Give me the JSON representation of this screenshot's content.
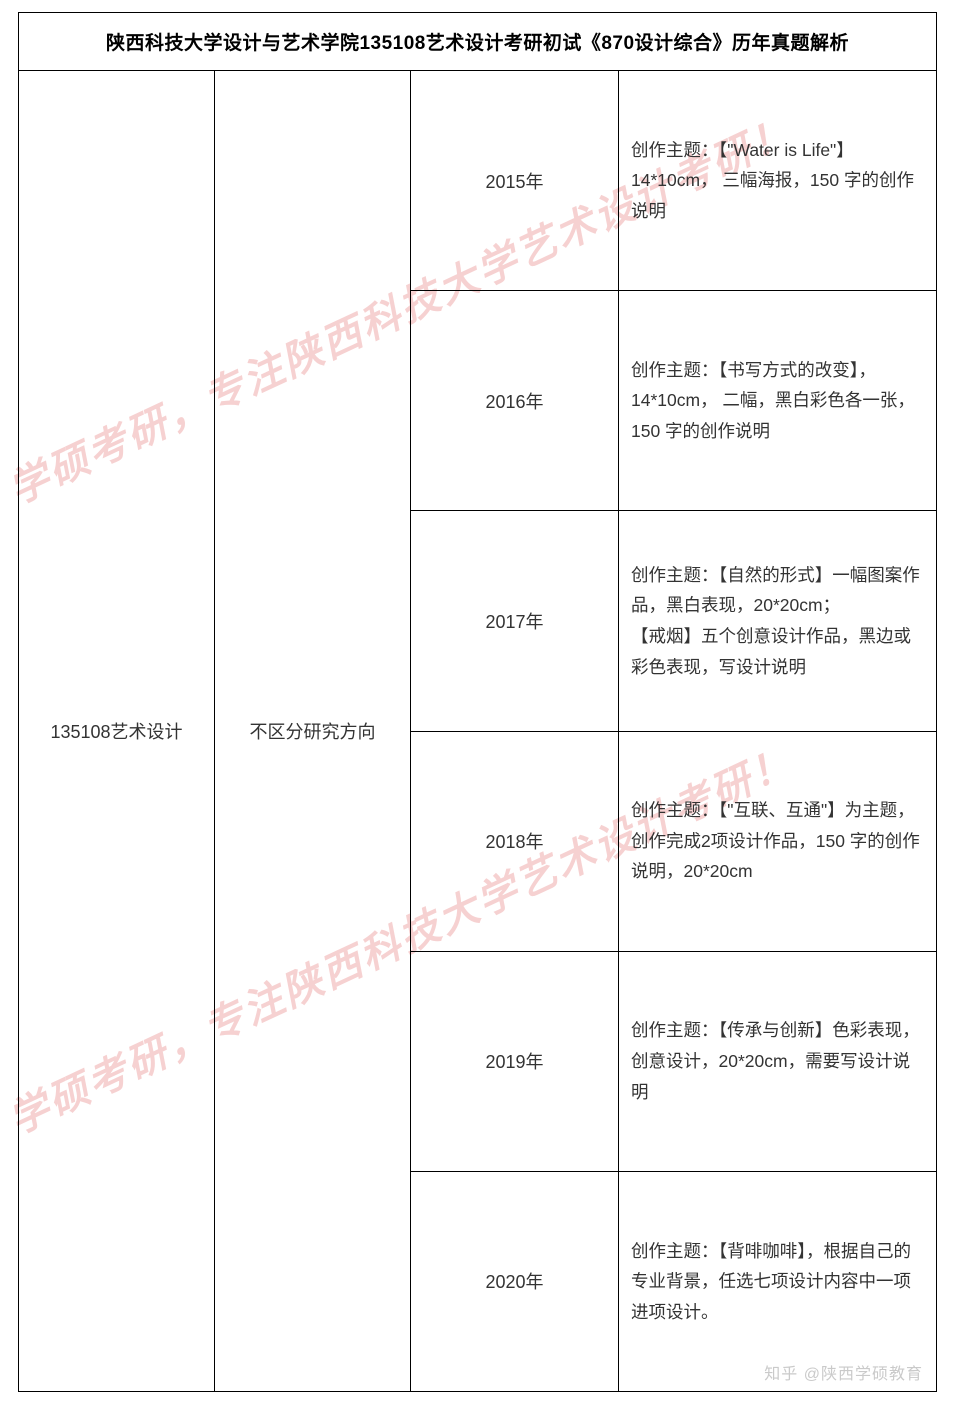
{
  "table": {
    "title": "陕西科技大学设计与艺术学院135108艺术设计考研初试《870设计综合》历年真题解析",
    "major": "135108艺术设计",
    "direction": "不区分研究方向",
    "rows": [
      {
        "year": "2015年",
        "desc": "创作主题：【\"Water is  Life\"】14*10cm， 三幅海报，150 字的创作说明"
      },
      {
        "year": "2016年",
        "desc": "创作主题：【书写方式的改变】，14*10cm， 二幅，黑白彩色各一张，150 字的创作说明"
      },
      {
        "year": "2017年",
        "desc": "创作主题：【自然的形式】一幅图案作品，黑白表现，20*20cm；\n【戒烟】五个创意设计作品，黑边或彩色表现，写设计说明"
      },
      {
        "year": "2018年",
        "desc": "创作主题：【\"互联、互通\"】为主题，创作完成2项设计作品，150 字的创作说明，20*20cm"
      },
      {
        "year": "2019年",
        "desc": "创作主题：【传承与创新】色彩表现，创意设计，20*20cm，需要写设计说明"
      },
      {
        "year": "2020年",
        "desc": "创作主题：【背啡咖啡】，根据自己的专业背景，任选七项设计内容中一项进项设计。"
      }
    ]
  },
  "watermarks": {
    "line1": "学硕考研，专注陕西科技大学艺术设计考研！",
    "line2": "学硕考研，专注陕西科技大学艺术设计考研！"
  },
  "attribution": "知乎 @陕西学硕教育"
}
